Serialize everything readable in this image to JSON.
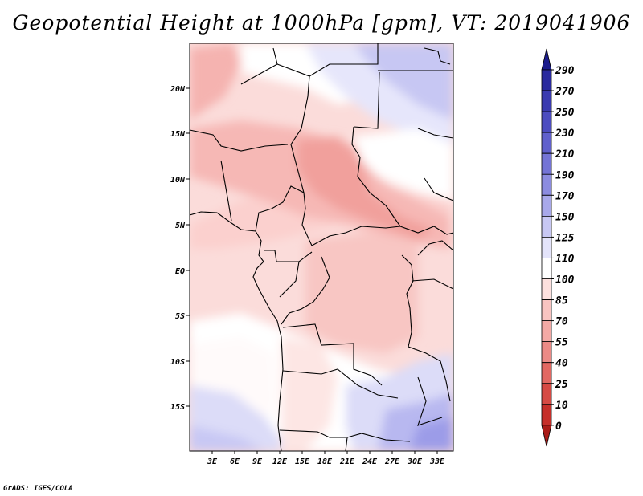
{
  "title": "Geopotential Height at 1000hPa [gpm], VT: 2019041906",
  "footer": "GrADS: IGES/COLA",
  "lat_labels": [
    "20N",
    "15N",
    "10N",
    "5N",
    "EQ",
    "5S",
    "10S",
    "15S"
  ],
  "lon_labels": [
    "3E",
    "6E",
    "9E",
    "12E",
    "15E",
    "18E",
    "21E",
    "24E",
    "27E",
    "30E",
    "33E"
  ],
  "colorbar": {
    "labels": [
      "290",
      "270",
      "250",
      "230",
      "210",
      "190",
      "170",
      "150",
      "125",
      "110",
      "100",
      "85",
      "70",
      "55",
      "40",
      "25",
      "10",
      "0"
    ],
    "colors": [
      "#1c1c8c",
      "#2a2a9e",
      "#3a3ab0",
      "#4c4cc0",
      "#6060cc",
      "#7474d6",
      "#8c8ce0",
      "#a8a8ea",
      "#c8c8f4",
      "#e4e4fb",
      "#ffffff",
      "#fde0de",
      "#f9c4c1",
      "#f3a9a5",
      "#eb8a86",
      "#e26862",
      "#d64a44",
      "#c62f2a",
      "#aa1c18"
    ]
  }
}
